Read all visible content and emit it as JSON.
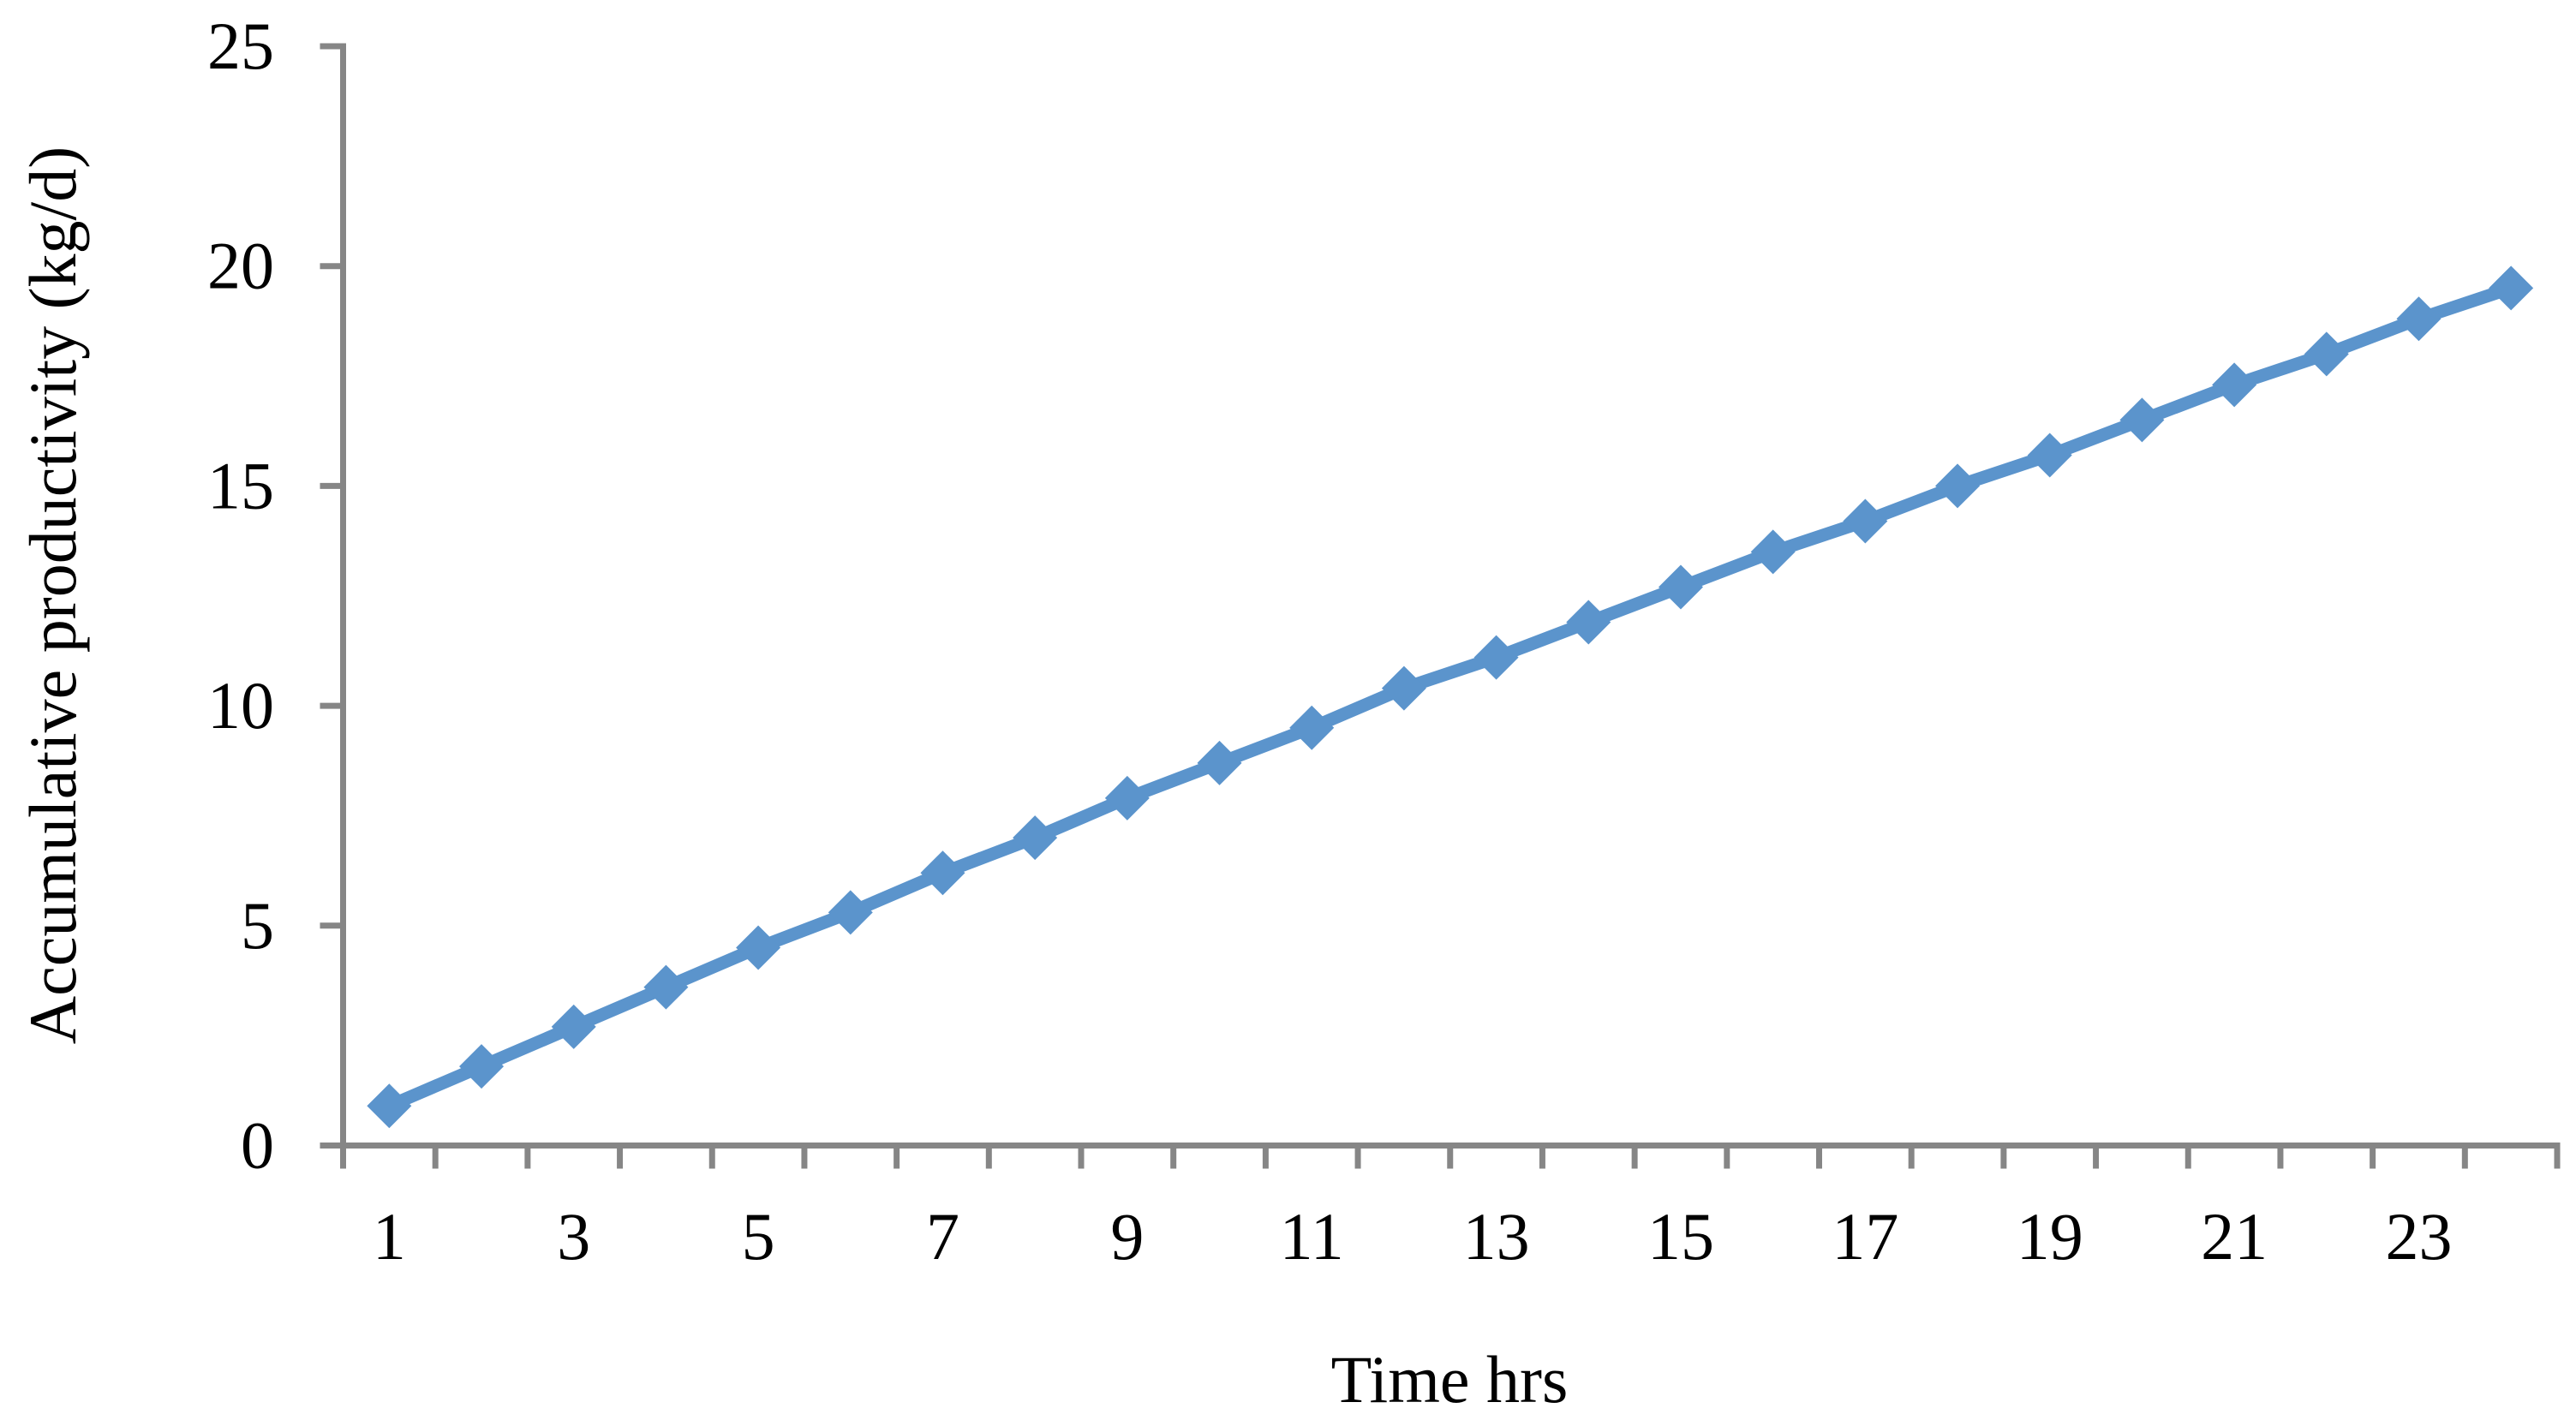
{
  "figure": {
    "background": "#ffffff"
  },
  "chart_data": {
    "type": "line",
    "title": "",
    "xlabel": "Time hrs",
    "ylabel": "Accumulative productivity (kg/d)",
    "x": [
      1,
      2,
      3,
      4,
      5,
      6,
      7,
      8,
      9,
      10,
      11,
      12,
      13,
      14,
      15,
      16,
      17,
      18,
      19,
      20,
      21,
      22,
      23,
      24
    ],
    "series": [
      {
        "name": "Accumulative productivity",
        "values": [
          0.9,
          1.8,
          2.7,
          3.6,
          4.5,
          5.3,
          6.2,
          7.0,
          7.9,
          8.7,
          9.5,
          10.4,
          11.1,
          11.9,
          12.7,
          13.5,
          14.2,
          15.0,
          15.7,
          16.5,
          17.3,
          18.0,
          18.8,
          19.5
        ]
      }
    ],
    "ylim": [
      0,
      25
    ],
    "yticks": [
      0,
      5,
      10,
      15,
      20,
      25
    ],
    "y_tick_labels": [
      "0",
      "5",
      "10",
      "15",
      "20",
      "25"
    ],
    "xticks_labeled": [
      1,
      3,
      5,
      7,
      9,
      11,
      13,
      15,
      17,
      19,
      21,
      23
    ],
    "x_tick_labels": [
      "1",
      "3",
      "5",
      "7",
      "9",
      "11",
      "13",
      "15",
      "17",
      "19",
      "21",
      "23"
    ],
    "grid": false,
    "legend": false,
    "marker": "diamond",
    "line_color": "#5B94CC",
    "axis_color": "#868686",
    "text_color": "#000000"
  }
}
